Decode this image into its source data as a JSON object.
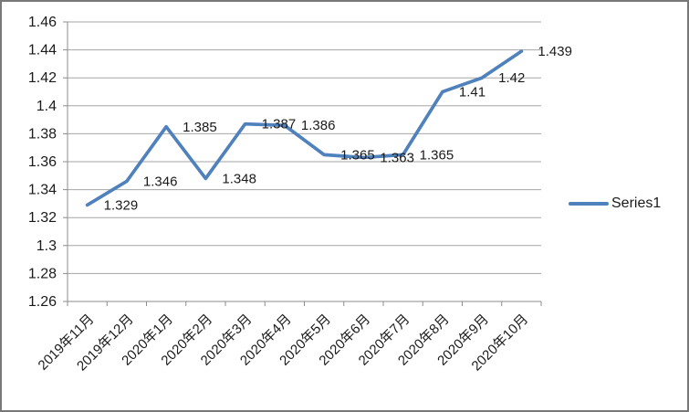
{
  "chart": {
    "colors": {
      "line": "#4F81BD",
      "gridline": "#A6A6A6",
      "axis": "#8C8C8C",
      "text": "#1a1a1a",
      "frame_border": "#787878",
      "background": "#FFFFFF"
    },
    "legend": {
      "label": "Series1",
      "position": "right"
    }
  },
  "chart_data": {
    "type": "line",
    "title": "",
    "xlabel": "",
    "ylabel": "",
    "categories": [
      "2019年11月",
      "2019年12月",
      "2020年1月",
      "2020年2月",
      "2020年3月",
      "2020年4月",
      "2020年5月",
      "2020年6月",
      "2020年7月",
      "2020年8月",
      "2020年9月",
      "2020年10月"
    ],
    "series": [
      {
        "name": "Series1",
        "values": [
          1.329,
          1.346,
          1.385,
          1.348,
          1.387,
          1.386,
          1.365,
          1.363,
          1.365,
          1.41,
          1.42,
          1.439
        ]
      }
    ],
    "data_labels": [
      "1.329",
      "1.346",
      "1.385",
      "1.348",
      "1.387",
      "1.386",
      "1.365",
      "1.363",
      "1.365",
      "1.41",
      "1.42",
      "1.439"
    ],
    "y_tick_labels": [
      "1.46",
      "1.44",
      "1.42",
      "1.4",
      "1.38",
      "1.36",
      "1.34",
      "1.32",
      "1.3",
      "1.28",
      "1.26"
    ],
    "ylim": [
      1.26,
      1.46
    ],
    "y_step": 0.02,
    "grid": true,
    "legend_position": "right"
  }
}
